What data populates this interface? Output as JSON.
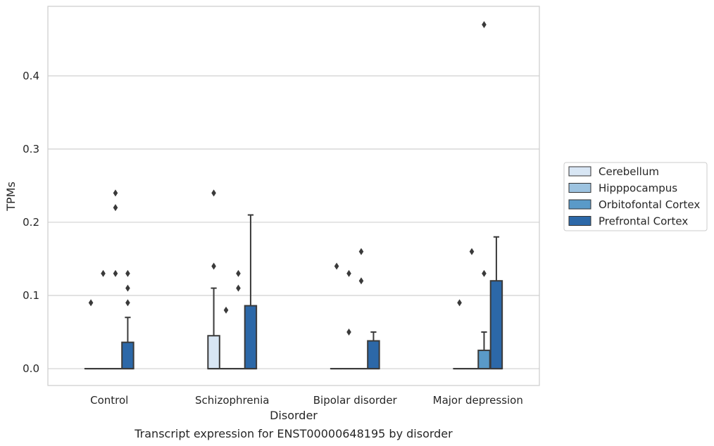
{
  "chart_data": {
    "type": "box",
    "title": "",
    "caption": "Transcript expression for ENST00000648195 by disorder",
    "xlabel": "Disorder",
    "ylabel": "TPMs",
    "ylim": [
      -0.023,
      0.495
    ],
    "yticks": [
      "0.0",
      "0.1",
      "0.2",
      "0.3",
      "0.4"
    ],
    "grid": "horizontal",
    "legend_position": "right",
    "categories": [
      "Control",
      "Schizophrenia",
      "Bipolar disorder",
      "Major depression"
    ],
    "series": [
      {
        "name": "Cerebellum",
        "color": "#d8e6f4",
        "boxes": [
          {
            "q1": 0,
            "median": 0,
            "q3": 0,
            "whisker_low": 0,
            "whisker_high": 0,
            "outliers": [
              0.09
            ]
          },
          {
            "q1": 0,
            "median": 0,
            "q3": 0.045,
            "whisker_low": 0,
            "whisker_high": 0.11,
            "outliers": [
              0.14,
              0.24
            ]
          },
          {
            "q1": 0,
            "median": 0,
            "q3": 0,
            "whisker_low": 0,
            "whisker_high": 0,
            "outliers": [
              0.14
            ]
          },
          {
            "q1": 0,
            "median": 0,
            "q3": 0,
            "whisker_low": 0,
            "whisker_high": 0,
            "outliers": [
              0.09
            ]
          }
        ]
      },
      {
        "name": "Hipppocampus",
        "color": "#9dc3e0",
        "boxes": [
          {
            "q1": 0,
            "median": 0,
            "q3": 0,
            "whisker_low": 0,
            "whisker_high": 0,
            "outliers": [
              0.13
            ]
          },
          {
            "q1": 0,
            "median": 0,
            "q3": 0,
            "whisker_low": 0,
            "whisker_high": 0,
            "outliers": [
              0.08
            ]
          },
          {
            "q1": 0,
            "median": 0,
            "q3": 0,
            "whisker_low": 0,
            "whisker_high": 0,
            "outliers": [
              0.05,
              0.13
            ]
          },
          {
            "q1": 0,
            "median": 0,
            "q3": 0,
            "whisker_low": 0,
            "whisker_high": 0,
            "outliers": [
              0.16
            ]
          }
        ]
      },
      {
        "name": "Orbitofontal Cortex",
        "color": "#5a9ac8",
        "boxes": [
          {
            "q1": 0,
            "median": 0,
            "q3": 0,
            "whisker_low": 0,
            "whisker_high": 0,
            "outliers": [
              0.13,
              0.22,
              0.24
            ]
          },
          {
            "q1": 0,
            "median": 0,
            "q3": 0,
            "whisker_low": 0,
            "whisker_high": 0,
            "outliers": [
              0.11,
              0.13
            ]
          },
          {
            "q1": 0,
            "median": 0,
            "q3": 0,
            "whisker_low": 0,
            "whisker_high": 0,
            "outliers": [
              0.12,
              0.16
            ]
          },
          {
            "q1": 0,
            "median": 0,
            "q3": 0.025,
            "whisker_low": 0,
            "whisker_high": 0.05,
            "outliers": [
              0.13,
              0.47
            ]
          }
        ]
      },
      {
        "name": "Prefrontal Cortex",
        "color": "#2c68a8",
        "boxes": [
          {
            "q1": 0,
            "median": 0,
            "q3": 0.036,
            "whisker_low": 0,
            "whisker_high": 0.07,
            "outliers": [
              0.09,
              0.11,
              0.13
            ]
          },
          {
            "q1": 0,
            "median": 0,
            "q3": 0.086,
            "whisker_low": 0,
            "whisker_high": 0.21,
            "outliers": []
          },
          {
            "q1": 0,
            "median": 0,
            "q3": 0.038,
            "whisker_low": 0,
            "whisker_high": 0.05,
            "outliers": []
          },
          {
            "q1": 0,
            "median": 0,
            "q3": 0.12,
            "whisker_low": 0,
            "whisker_high": 0.18,
            "outliers": []
          }
        ]
      }
    ]
  }
}
